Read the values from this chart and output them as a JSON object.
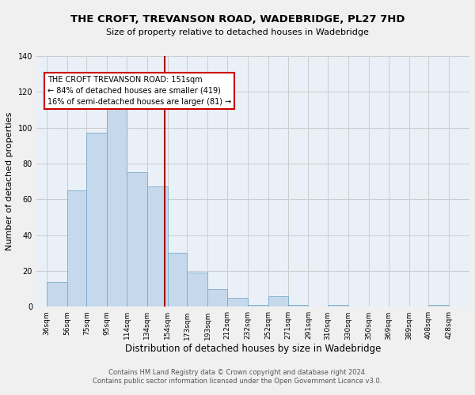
{
  "title": "THE CROFT, TREVANSON ROAD, WADEBRIDGE, PL27 7HD",
  "subtitle": "Size of property relative to detached houses in Wadebridge",
  "xlabel": "Distribution of detached houses by size in Wadebridge",
  "ylabel": "Number of detached properties",
  "bar_left_edges": [
    36,
    56,
    75,
    95,
    114,
    134,
    154,
    173,
    193,
    212,
    232,
    252,
    271,
    291,
    310,
    330,
    350,
    369,
    389,
    408
  ],
  "bar_widths": [
    20,
    19,
    20,
    19,
    20,
    20,
    19,
    20,
    19,
    20,
    20,
    19,
    20,
    19,
    20,
    20,
    19,
    20,
    19,
    20
  ],
  "bar_heights": [
    14,
    65,
    97,
    115,
    75,
    67,
    30,
    19,
    10,
    5,
    1,
    6,
    1,
    0,
    1,
    0,
    0,
    0,
    0,
    1
  ],
  "bar_color": "#c6d9ec",
  "bar_edgecolor": "#7aaac8",
  "tick_labels": [
    "36sqm",
    "56sqm",
    "75sqm",
    "95sqm",
    "114sqm",
    "134sqm",
    "154sqm",
    "173sqm",
    "193sqm",
    "212sqm",
    "232sqm",
    "252sqm",
    "271sqm",
    "291sqm",
    "310sqm",
    "330sqm",
    "350sqm",
    "369sqm",
    "389sqm",
    "408sqm",
    "428sqm"
  ],
  "tick_positions": [
    36,
    56,
    75,
    95,
    114,
    134,
    154,
    173,
    193,
    212,
    232,
    252,
    271,
    291,
    310,
    330,
    350,
    369,
    389,
    408,
    428
  ],
  "yticks": [
    0,
    20,
    40,
    60,
    80,
    100,
    120,
    140
  ],
  "ylim": [
    0,
    140
  ],
  "xlim": [
    26,
    448
  ],
  "vline_x": 151,
  "vline_color": "#aa0000",
  "annotation_title": "THE CROFT TREVANSON ROAD: 151sqm",
  "annotation_line1": "← 84% of detached houses are smaller (419)",
  "annotation_line2": "16% of semi-detached houses are larger (81) →",
  "footer_line1": "Contains HM Land Registry data © Crown copyright and database right 2024.",
  "footer_line2": "Contains public sector information licensed under the Open Government Licence v3.0.",
  "bg_color": "#f0f0f0",
  "plot_bg_color": "#eaf0f8",
  "grid_color": "#cccccc",
  "title_fontsize": 9.5,
  "subtitle_fontsize": 8.0,
  "ylabel_fontsize": 8.0,
  "xlabel_fontsize": 8.5,
  "footer_fontsize": 6.0,
  "tick_fontsize": 6.5
}
